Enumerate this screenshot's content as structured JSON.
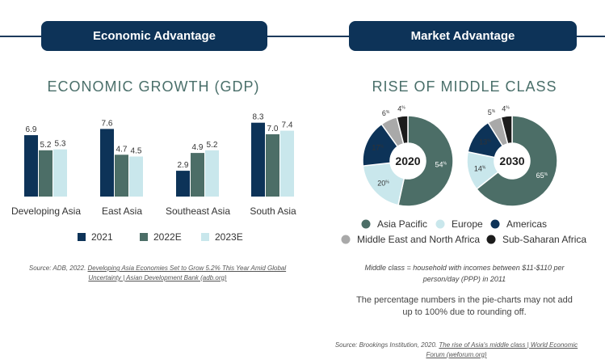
{
  "tabs": {
    "left": "Economic Advantage",
    "right": "Market Advantage"
  },
  "colors": {
    "navy": "#0d3358",
    "teal": "#4c6e67",
    "light": "#c9e7ec",
    "gray": "#a9a9a9",
    "black": "#1c1c1c"
  },
  "chart_data": [
    {
      "type": "bar",
      "title": "ECONOMIC GROWTH (GDP)",
      "categories": [
        "Developing Asia",
        "East Asia",
        "Southeast Asia",
        "South Asia"
      ],
      "series": [
        {
          "name": "2021",
          "values": [
            6.9,
            7.6,
            2.9,
            8.3
          ],
          "labels": [
            "6.9",
            "7.6",
            "2.9",
            "8.3"
          ]
        },
        {
          "name": "2022E",
          "values": [
            5.2,
            4.7,
            4.9,
            7.0
          ],
          "labels": [
            "5.2",
            "4.7",
            "4.9",
            "7.0"
          ]
        },
        {
          "name": "2023E",
          "values": [
            5.3,
            4.5,
            5.2,
            7.4
          ],
          "labels": [
            "5.3",
            "4.5",
            "5.2",
            "7.4"
          ]
        }
      ],
      "ylim": [
        0,
        9
      ],
      "source": {
        "prefix": "Source: ADB, 2022. ",
        "link": "Developing Asia Economies Set to Grow 5.2% This Year Amid Global Uncertainty | Asian Development Bank (adb.org)"
      }
    },
    {
      "type": "pie",
      "title": "RISE OF MIDDLE CLASS",
      "categories": [
        "Asia Pacific",
        "Europe",
        "Americas",
        "Middle East and North Africa",
        "Sub-Saharan Africa"
      ],
      "pies": [
        {
          "label": "2020",
          "values": [
            54,
            20,
            17,
            6,
            4
          ]
        },
        {
          "label": "2030",
          "values": [
            65,
            14,
            13,
            5,
            4
          ]
        }
      ]
    }
  ],
  "notes": {
    "definition": "Middle class = household with incomes between $11-$110 per person/day (PPP) in 2011",
    "rounding": "The percentage numbers in the pie-charts may not add up to 100% due to rounding off.",
    "source_prefix": "Source: Brookings Institution, 2020. ",
    "source_link": "The rise of Asia's middle class | World Economic Forum (weforum.org)"
  }
}
